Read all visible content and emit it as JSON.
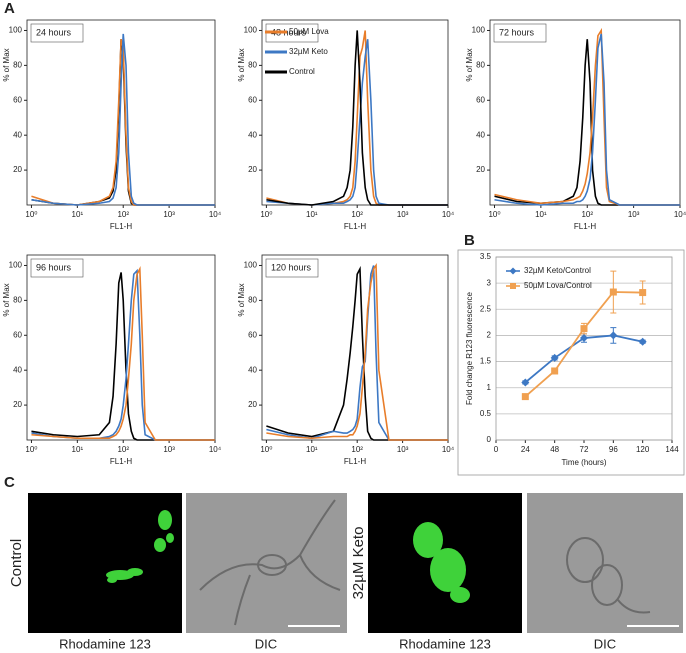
{
  "panel_labels": [
    "A",
    "B",
    "C"
  ],
  "chart_data": [
    {
      "type": "line",
      "xscale": "log",
      "annotation": "24 hours",
      "ylabel": "% of Max",
      "xlabel": "FL1-H",
      "x": [
        1,
        3,
        10,
        30,
        50,
        60,
        70,
        80,
        90,
        100,
        115,
        130,
        150,
        170,
        200,
        230,
        260,
        300,
        500,
        10000
      ],
      "series": [
        {
          "color": "#000000",
          "values": [
            3,
            1,
            0,
            2,
            4,
            8,
            20,
            55,
            95,
            85,
            35,
            8,
            1,
            0,
            0,
            0,
            0,
            0,
            0,
            0
          ]
        },
        {
          "color": "#e87d2a",
          "values": [
            5,
            1,
            0,
            2,
            5,
            10,
            25,
            60,
            95,
            90,
            40,
            10,
            2,
            0,
            0,
            0,
            0,
            0,
            0,
            0
          ]
        },
        {
          "color": "#3d78c4",
          "values": [
            3,
            1,
            0,
            1,
            2,
            4,
            10,
            30,
            70,
            98,
            80,
            30,
            5,
            1,
            0,
            0,
            0,
            0,
            0,
            0
          ]
        }
      ],
      "xlim": [
        0.8,
        10000
      ],
      "xticks": [
        {
          "value": 1,
          "label": "10⁰"
        },
        {
          "value": 10,
          "label": "10¹"
        },
        {
          "value": 100,
          "label": "10²"
        },
        {
          "value": 1000,
          "label": "10³"
        },
        {
          "value": 10000,
          "label": "10⁴"
        }
      ],
      "ylim": [
        0,
        106
      ],
      "yticks": [
        20,
        40,
        60,
        80,
        100
      ]
    },
    {
      "type": "line",
      "xscale": "log",
      "annotation": "48 hours",
      "ylabel": "% of Max",
      "xlabel": "FL1-H",
      "legend": "top-left",
      "x": [
        1,
        3,
        10,
        30,
        50,
        60,
        70,
        80,
        90,
        100,
        115,
        130,
        150,
        170,
        200,
        230,
        260,
        300,
        500,
        10000
      ],
      "series": [
        {
          "name": "50µM Lova",
          "color": "#e87d2a",
          "values": [
            4,
            1,
            0,
            1,
            2,
            3,
            5,
            10,
            25,
            50,
            85,
            90,
            100,
            60,
            20,
            5,
            1,
            0,
            0,
            0
          ]
        },
        {
          "name": "32µM Keto",
          "color": "#3d78c4",
          "values": [
            2,
            1,
            0,
            1,
            1,
            2,
            3,
            5,
            10,
            25,
            50,
            70,
            85,
            95,
            60,
            20,
            5,
            1,
            0,
            0
          ]
        },
        {
          "name": "Control",
          "color": "#000000",
          "values": [
            3,
            1,
            0,
            2,
            5,
            10,
            20,
            45,
            80,
            100,
            70,
            30,
            10,
            3,
            0,
            0,
            0,
            0,
            0,
            0
          ]
        }
      ],
      "xlim": [
        0.8,
        10000
      ],
      "xticks": [
        {
          "value": 1,
          "label": "10⁰"
        },
        {
          "value": 10,
          "label": "10¹"
        },
        {
          "value": 100,
          "label": "10²"
        },
        {
          "value": 1000,
          "label": "10³"
        },
        {
          "value": 10000,
          "label": "10⁴"
        }
      ],
      "ylim": [
        0,
        106
      ],
      "yticks": [
        20,
        40,
        60,
        80,
        100
      ]
    },
    {
      "type": "line",
      "xscale": "log",
      "annotation": "72 hours",
      "ylabel": "% of Max",
      "xlabel": "FL1-H",
      "x": [
        1,
        3,
        10,
        30,
        50,
        60,
        70,
        80,
        90,
        100,
        115,
        130,
        150,
        170,
        200,
        230,
        260,
        300,
        500,
        10000
      ],
      "series": [
        {
          "color": "#000000",
          "values": [
            5,
            2,
            1,
            2,
            5,
            10,
            25,
            50,
            80,
            95,
            70,
            20,
            5,
            1,
            0,
            0,
            0,
            0,
            0,
            0
          ]
        },
        {
          "color": "#e87d2a",
          "values": [
            6,
            3,
            1,
            2,
            3,
            4,
            5,
            8,
            12,
            18,
            30,
            50,
            80,
            97,
            100,
            50,
            10,
            2,
            0,
            0
          ]
        },
        {
          "color": "#3d78c4",
          "values": [
            3,
            1,
            0,
            1,
            1,
            2,
            2,
            3,
            5,
            8,
            15,
            30,
            60,
            90,
            98,
            70,
            20,
            3,
            0,
            0
          ]
        }
      ],
      "xlim": [
        0.8,
        10000
      ],
      "xticks": [
        {
          "value": 1,
          "label": "10⁰"
        },
        {
          "value": 10,
          "label": "10¹"
        },
        {
          "value": 100,
          "label": "10²"
        },
        {
          "value": 1000,
          "label": "10³"
        },
        {
          "value": 10000,
          "label": "10⁴"
        }
      ],
      "ylim": [
        0,
        106
      ],
      "yticks": [
        20,
        40,
        60,
        80,
        100
      ]
    },
    {
      "type": "line",
      "xscale": "log",
      "annotation": "96 hours",
      "ylabel": "% of Max",
      "xlabel": "FL1-H",
      "x": [
        1,
        3,
        10,
        30,
        50,
        60,
        70,
        80,
        90,
        100,
        115,
        130,
        150,
        170,
        200,
        230,
        260,
        300,
        500,
        10000
      ],
      "series": [
        {
          "color": "#000000",
          "values": [
            5,
            3,
            2,
            3,
            10,
            25,
            55,
            90,
            96,
            80,
            40,
            15,
            5,
            1,
            0,
            0,
            0,
            0,
            0,
            0
          ]
        },
        {
          "color": "#3d78c4",
          "values": [
            4,
            2,
            1,
            1,
            2,
            3,
            5,
            8,
            12,
            20,
            35,
            55,
            80,
            95,
            97,
            60,
            20,
            3,
            0,
            0
          ]
        },
        {
          "color": "#e87d2a",
          "values": [
            3,
            2,
            1,
            1,
            1,
            2,
            3,
            5,
            8,
            12,
            20,
            35,
            55,
            80,
            95,
            98,
            60,
            10,
            0,
            0
          ]
        }
      ],
      "xlim": [
        0.8,
        10000
      ],
      "xticks": [
        {
          "value": 1,
          "label": "10⁰"
        },
        {
          "value": 10,
          "label": "10¹"
        },
        {
          "value": 100,
          "label": "10²"
        },
        {
          "value": 1000,
          "label": "10³"
        },
        {
          "value": 10000,
          "label": "10⁴"
        }
      ],
      "ylim": [
        0,
        106
      ],
      "yticks": [
        20,
        40,
        60,
        80,
        100
      ]
    },
    {
      "type": "line",
      "xscale": "log",
      "annotation": "120 hours",
      "ylabel": "% of Max",
      "xlabel": "FL1-H",
      "x": [
        1,
        3,
        10,
        30,
        50,
        60,
        70,
        80,
        90,
        100,
        115,
        130,
        150,
        170,
        200,
        230,
        260,
        300,
        500,
        10000
      ],
      "series": [
        {
          "color": "#000000",
          "values": [
            8,
            4,
            2,
            5,
            20,
            35,
            50,
            65,
            80,
            95,
            98,
            60,
            25,
            5,
            1,
            0,
            0,
            0,
            0,
            0
          ]
        },
        {
          "color": "#3d78c4",
          "values": [
            6,
            3,
            1,
            5,
            4,
            4,
            5,
            6,
            8,
            12,
            30,
            42,
            45,
            70,
            95,
            100,
            50,
            10,
            0,
            0
          ]
        },
        {
          "color": "#e87d2a",
          "values": [
            4,
            2,
            1,
            2,
            2,
            2,
            3,
            3,
            5,
            8,
            15,
            30,
            50,
            75,
            90,
            98,
            100,
            40,
            0,
            0
          ]
        }
      ],
      "xlim": [
        0.8,
        10000
      ],
      "xticks": [
        {
          "value": 1,
          "label": "10⁰"
        },
        {
          "value": 10,
          "label": "10¹"
        },
        {
          "value": 100,
          "label": "10²"
        },
        {
          "value": 1000,
          "label": "10³"
        },
        {
          "value": 10000,
          "label": "10⁴"
        }
      ],
      "ylim": [
        0,
        106
      ],
      "yticks": [
        20,
        40,
        60,
        80,
        100
      ]
    },
    {
      "type": "errorline",
      "ylabel": "Fold change R123 fluorescence",
      "xlabel": "Time (hours)",
      "legend": "top-left",
      "grid": true,
      "x": [
        24,
        48,
        72,
        96,
        120
      ],
      "series": [
        {
          "name": "32µM Keto/Control",
          "color": "#3d78c4",
          "marker": "diamond",
          "values": [
            1.1,
            1.57,
            1.95,
            2.0,
            1.88
          ],
          "errors": [
            0.03,
            0.04,
            0.08,
            0.15,
            0.03
          ]
        },
        {
          "name": "50µM Lova/Control",
          "color": "#f0a050",
          "marker": "square",
          "values": [
            0.83,
            1.32,
            2.13,
            2.83,
            2.82
          ],
          "errors": [
            0.02,
            0.03,
            0.1,
            0.4,
            0.22
          ]
        }
      ],
      "xlim": [
        0,
        144
      ],
      "xticks": [
        0,
        24,
        48,
        72,
        96,
        120,
        144
      ],
      "ylim": [
        0,
        3.5
      ],
      "yticks": [
        0,
        0.5,
        1,
        1.5,
        2,
        2.5,
        3,
        3.5
      ]
    }
  ],
  "images": {
    "row_labels": [
      "Control",
      "32µM Keto"
    ],
    "captions": [
      "Rhodamine 123",
      "DIC",
      "Rhodamine 123",
      "DIC"
    ]
  }
}
